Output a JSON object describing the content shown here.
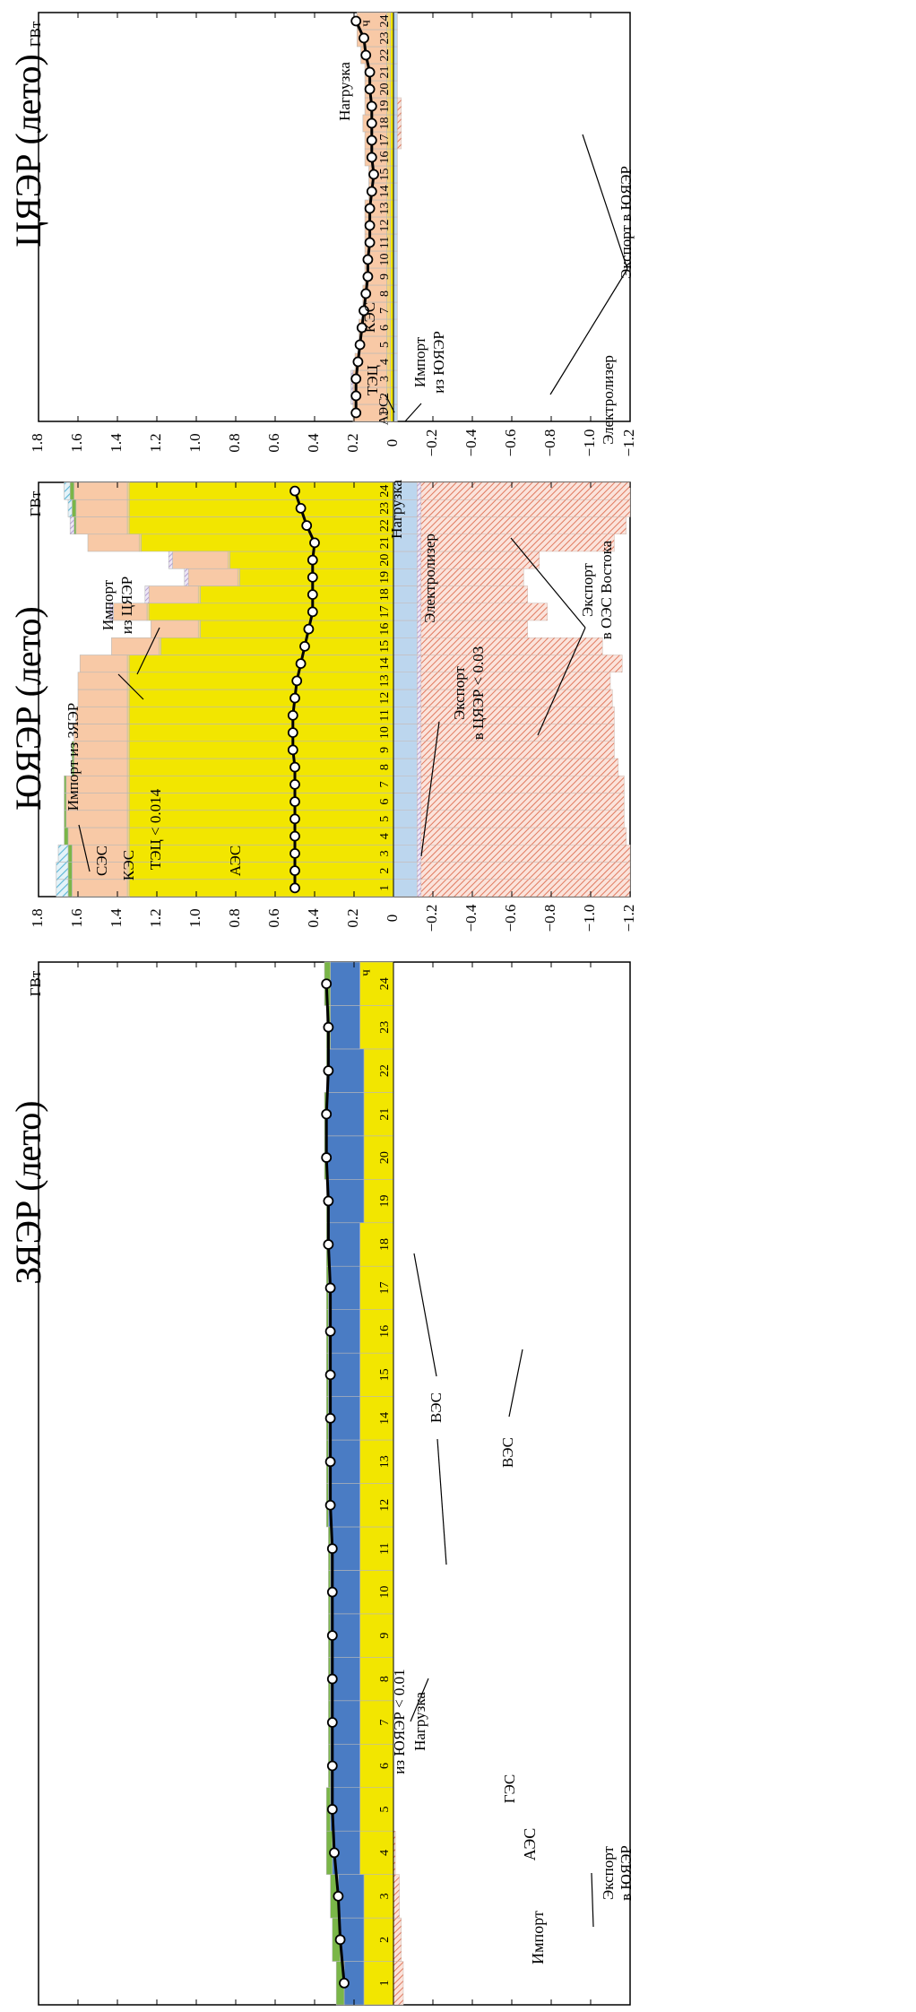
{
  "figure": {
    "unit_label": "ГВт",
    "hour_label": "ч",
    "legend_label": "Нагрузка"
  },
  "colors": {
    "aes": "#f2e600",
    "ges": "#4a7cc4",
    "ves": "#7ab648",
    "kes": "#f8c9a6",
    "tec": "#f3d27a",
    "electrolyzer": "#bcd6ee",
    "export_hatch": "#e07a5f",
    "import_hatch": "#a58cc8",
    "ses_hatch": "#5bb5d5",
    "load": "#000000"
  },
  "chart_data": [
    {
      "type": "area",
      "title": "ЗЯЭР (лето)",
      "ylabel": "ГВт",
      "xlabel": "ч",
      "ylim": [
        -1.2,
        1.8
      ],
      "y_ticks": [
        1.8,
        1.6,
        1.4,
        1.2,
        1.0,
        0.8,
        0.6,
        0.4,
        0.2,
        0,
        -0.2,
        -0.4,
        -0.6,
        -0.8,
        -1.0,
        -1.2
      ],
      "y_tick_labels": [
        "1.8",
        "1.6",
        "1.4",
        "1.2",
        "1.0",
        "0.8",
        "0.6",
        "0.4",
        "0.2",
        "0",
        "−0.2",
        "−0.4",
        "−0.6",
        "−0.8",
        "−1.0",
        "−1.2"
      ],
      "hours": [
        "1",
        "2",
        "3",
        "4",
        "5",
        "6",
        "7",
        "8",
        "9",
        "10",
        "11",
        "12",
        "13",
        "14",
        "15",
        "16",
        "17",
        "18",
        "19",
        "20",
        "21",
        "22",
        "23",
        "24"
      ],
      "layers": [
        {
          "key": "aes",
          "name": "АЭС",
          "color": "#f2e600",
          "values": [
            0.15,
            0.15,
            0.15,
            0.17,
            0.17,
            0.17,
            0.17,
            0.17,
            0.17,
            0.17,
            0.17,
            0.17,
            0.17,
            0.17,
            0.17,
            0.17,
            0.17,
            0.17,
            0.15,
            0.15,
            0.15,
            0.15,
            0.17,
            0.17
          ]
        },
        {
          "key": "ges",
          "name": "ГЭС",
          "color": "#4a7cc4",
          "values": [
            0.1,
            0.12,
            0.13,
            0.14,
            0.15,
            0.15,
            0.15,
            0.15,
            0.15,
            0.15,
            0.15,
            0.16,
            0.16,
            0.16,
            0.16,
            0.16,
            0.16,
            0.16,
            0.18,
            0.19,
            0.19,
            0.18,
            0.15,
            0.15
          ]
        },
        {
          "key": "ves",
          "name": "ВЭС",
          "color": "#7ab648",
          "values": [
            0.04,
            0.04,
            0.04,
            0.03,
            0.02,
            0.01,
            0.01,
            0.01,
            0.01,
            0.01,
            0.01,
            0.01,
            0.01,
            0.01,
            0.01,
            0.01,
            0.01,
            0.01,
            0.01,
            0.01,
            0.01,
            0.01,
            0.02,
            0.03
          ]
        }
      ],
      "negative_layers": [
        {
          "key": "export",
          "name": "Экспорт в ЮЯЭР",
          "color": "#e07a5f",
          "hatch": true,
          "values": [
            -0.05,
            -0.04,
            -0.03,
            -0.01,
            0,
            0,
            0,
            0,
            0,
            0,
            0,
            0,
            0,
            0,
            0,
            0,
            0,
            0,
            0,
            0,
            0,
            0,
            0,
            0
          ]
        }
      ],
      "load": [
        0.25,
        0.27,
        0.28,
        0.3,
        0.31,
        0.31,
        0.31,
        0.31,
        0.31,
        0.31,
        0.31,
        0.32,
        0.32,
        0.32,
        0.32,
        0.32,
        0.32,
        0.33,
        0.33,
        0.34,
        0.34,
        0.33,
        0.33,
        0.34
      ],
      "annotations": [
        {
          "text": "ВЭС"
        },
        {
          "text": "ГЭС"
        },
        {
          "text": "АЭС"
        },
        {
          "text": "Импорт"
        },
        {
          "text": "из ЮЯЭР < 0.01"
        },
        {
          "text": "Нагрузка"
        },
        {
          "text": "ВЭС"
        },
        {
          "text": "Экспорт"
        },
        {
          "text": "в ЮЯЭР"
        }
      ]
    },
    {
      "type": "area",
      "title": "ЮЯЭР (лето)",
      "ylabel": "ГВт",
      "xlabel": "ч",
      "ylim": [
        -1.2,
        1.8
      ],
      "y_ticks": [
        1.8,
        1.6,
        1.4,
        1.2,
        1.0,
        0.8,
        0.6,
        0.4,
        0.2,
        0,
        -0.2,
        -0.4,
        -0.6,
        -0.8,
        -1.0,
        -1.2
      ],
      "y_tick_labels": [
        "1.8",
        "1.6",
        "1.4",
        "1.2",
        "1.0",
        "0.8",
        "0.6",
        "0.4",
        "0.2",
        "0",
        "−0.2",
        "−0.4",
        "−0.6",
        "−0.8",
        "−1.0",
        "−1.2"
      ],
      "hours": [
        "1",
        "2",
        "3",
        "4",
        "5",
        "6",
        "7",
        "8",
        "9",
        "10",
        "11",
        "12",
        "13",
        "14",
        "15",
        "16",
        "17",
        "18",
        "19",
        "20",
        "21",
        "22",
        "23",
        "24"
      ],
      "layers": [
        {
          "key": "aes",
          "name": "АЭС",
          "color": "#f2e600",
          "values": [
            1.34,
            1.34,
            1.34,
            1.34,
            1.34,
            1.34,
            1.34,
            1.34,
            1.34,
            1.34,
            1.34,
            1.34,
            1.34,
            1.34,
            1.18,
            0.98,
            1.24,
            0.98,
            0.78,
            0.83,
            1.28,
            1.34,
            1.34,
            1.34
          ]
        },
        {
          "key": "tec",
          "name": "ТЭЦ < 0.014",
          "color": "#f3d27a",
          "values": [
            0.01,
            0.01,
            0.01,
            0.01,
            0.01,
            0.01,
            0.01,
            0.01,
            0.01,
            0.01,
            0.01,
            0.01,
            0.01,
            0.01,
            0.01,
            0.01,
            0.01,
            0.01,
            0.01,
            0.01,
            0.01,
            0.01,
            0.01,
            0.01
          ]
        },
        {
          "key": "kes",
          "name": "КЭС",
          "color": "#f8c9a6",
          "values": [
            0.28,
            0.28,
            0.28,
            0.3,
            0.31,
            0.31,
            0.31,
            0.27,
            0.27,
            0.27,
            0.26,
            0.25,
            0.25,
            0.24,
            0.24,
            0.24,
            0.17,
            0.25,
            0.25,
            0.28,
            0.26,
            0.26,
            0.26,
            0.27
          ]
        },
        {
          "key": "ves",
          "name": "СЭС",
          "color": "#7ab648",
          "values": [
            0.02,
            0.02,
            0.02,
            0.02,
            0.01,
            0.01,
            0.01,
            0.01,
            0.01,
            0.0,
            0.0,
            0.0,
            0.0,
            0.0,
            0.0,
            0.0,
            0.0,
            0.0,
            0.0,
            0.0,
            0.0,
            0.01,
            0.02,
            0.02
          ]
        },
        {
          "key": "ses",
          "name": "СЭС",
          "color": "#5bb5d5",
          "hatch": true,
          "values": [
            0.06,
            0.06,
            0.05,
            0.0,
            0,
            0,
            0,
            0,
            0,
            0,
            0,
            0,
            0,
            0,
            0,
            0,
            0,
            0,
            0,
            0,
            0,
            0,
            0.02,
            0.03
          ]
        },
        {
          "key": "import",
          "name": "Импорт из ЦЯЭР",
          "color": "#a58cc8",
          "hatch": true,
          "values": [
            0,
            0,
            0,
            0,
            0,
            0,
            0,
            0,
            0,
            0,
            0,
            0,
            0,
            0,
            0,
            0,
            0.02,
            0.02,
            0.02,
            0.02,
            0,
            0.02,
            0,
            0
          ]
        }
      ],
      "negative_layers": [
        {
          "key": "electrolyzer",
          "name": "Электролизер",
          "color": "#bcd6ee",
          "values": [
            -0.12,
            -0.12,
            -0.12,
            -0.12,
            -0.12,
            -0.12,
            -0.12,
            -0.12,
            -0.12,
            -0.12,
            -0.12,
            -0.12,
            -0.12,
            -0.12,
            -0.12,
            -0.12,
            -0.12,
            -0.12,
            -0.12,
            -0.12,
            -0.12,
            -0.12,
            -0.12,
            -0.12
          ]
        },
        {
          "key": "export_cyaer",
          "name": "Экспорт в ЦЯЭР < 0.03",
          "color": "#a58cc8",
          "hatch": true,
          "values": [
            -0.02,
            -0.02,
            -0.02,
            -0.02,
            -0.02,
            -0.02,
            -0.02,
            -0.02,
            -0.02,
            -0.02,
            -0.02,
            -0.02,
            -0.02,
            -0.02,
            -0.02,
            -0.02,
            -0.02,
            -0.02,
            -0.02,
            -0.02,
            -0.02,
            -0.02,
            -0.02,
            -0.02
          ]
        },
        {
          "key": "export_oes",
          "name": "Экспорт в ОЭС Востока",
          "color": "#e07a5f",
          "hatch": true,
          "values": [
            -1.06,
            -1.06,
            -1.06,
            -1.04,
            -1.03,
            -1.03,
            -1.03,
            -1.0,
            -0.98,
            -0.98,
            -0.98,
            -0.97,
            -0.96,
            -1.02,
            -0.92,
            -0.54,
            -0.64,
            -0.54,
            -0.52,
            -0.6,
            -0.98,
            -1.04,
            -1.06,
            -1.06
          ]
        }
      ],
      "load": [
        0.5,
        0.5,
        0.5,
        0.5,
        0.5,
        0.5,
        0.5,
        0.5,
        0.51,
        0.51,
        0.51,
        0.5,
        0.49,
        0.47,
        0.45,
        0.43,
        0.41,
        0.41,
        0.41,
        0.41,
        0.4,
        0.44,
        0.47,
        0.5
      ],
      "annotations": [
        {
          "text": "Импорт из ЗЯЭР"
        },
        {
          "text": "СЭС"
        },
        {
          "text": "КЭС"
        },
        {
          "text": "ТЭЦ < 0.014"
        },
        {
          "text": "АЭС"
        },
        {
          "text": "Импорт"
        },
        {
          "text": "из ЦЯЭР"
        },
        {
          "text": "Нагрузка"
        },
        {
          "text": "Электролизер"
        },
        {
          "text": "Экспорт"
        },
        {
          "text": "в ЦЯЭР < 0.03"
        },
        {
          "text": "Экспорт"
        },
        {
          "text": "в ОЭС Востока"
        }
      ]
    },
    {
      "type": "area",
      "title": "ЦЯЭР (лето)",
      "ylabel": "ГВт",
      "xlabel": "ч",
      "ylim": [
        -1.2,
        1.8
      ],
      "y_ticks": [
        1.8,
        1.6,
        1.4,
        1.2,
        1.0,
        0.8,
        0.6,
        0.4,
        0.2,
        0,
        -0.2,
        -0.4,
        -0.6,
        -0.8,
        -1.0,
        -1.2
      ],
      "y_tick_labels": [
        "1.8",
        "1.6",
        "1.4",
        "1.2",
        "1.0",
        "0.8",
        "0.6",
        "0.4",
        "0.2",
        "0",
        "−0.2",
        "−0.4",
        "−0.6",
        "−0.8",
        "−1.0",
        "−1.2"
      ],
      "hours": [
        "1",
        "2",
        "3",
        "4",
        "5",
        "6",
        "7",
        "8",
        "9",
        "10",
        "11",
        "12",
        "13",
        "14",
        "15",
        "16",
        "17",
        "18",
        "19",
        "20",
        "21",
        "22",
        "23",
        "24"
      ],
      "layers": [
        {
          "key": "aes",
          "name": "АЭС",
          "color": "#f2e600",
          "values": [
            0.015,
            0.015,
            0.015,
            0.015,
            0.015,
            0.015,
            0.015,
            0.015,
            0.015,
            0.015,
            0.015,
            0.015,
            0.015,
            0.015,
            0.015,
            0.015,
            0.015,
            0.015,
            0.015,
            0.015,
            0.015,
            0.015,
            0.015,
            0.015
          ]
        },
        {
          "key": "tec",
          "name": "ТЭЦ",
          "color": "#f3d27a",
          "values": [
            0.02,
            0.02,
            0.02,
            0.02,
            0.02,
            0.02,
            0.02,
            0.02,
            0.02,
            0.02,
            0.02,
            0.02,
            0.02,
            0.02,
            0.02,
            0.02,
            0.02,
            0.02,
            0.02,
            0.02,
            0.02,
            0.02,
            0.02,
            0.02
          ]
        },
        {
          "key": "kes",
          "name": "КЭС",
          "color": "#f8c9a6",
          "values": [
            0.17,
            0.17,
            0.17,
            0.16,
            0.14,
            0.14,
            0.12,
            0.12,
            0.11,
            0.11,
            0.11,
            0.11,
            0.11,
            0.09,
            0.09,
            0.11,
            0.11,
            0.12,
            0.11,
            0.11,
            0.11,
            0.13,
            0.15,
            0.15
          ]
        },
        {
          "key": "import",
          "name": "Импорт из ЮЯЭР",
          "color": "#a58cc8",
          "hatch": true,
          "values": [
            0.0,
            0.01,
            0.01,
            0,
            0,
            0,
            0,
            0,
            0,
            0,
            0,
            0,
            0,
            0,
            0,
            0,
            0,
            0,
            0,
            0,
            0,
            0,
            0,
            0
          ]
        }
      ],
      "negative_layers": [
        {
          "key": "electrolyzer",
          "name": "Электролизер",
          "color": "#bcd6ee",
          "values": [
            -0.02,
            -0.02,
            -0.02,
            -0.02,
            -0.02,
            -0.02,
            -0.02,
            -0.02,
            -0.02,
            -0.02,
            -0.02,
            -0.02,
            -0.02,
            -0.02,
            -0.02,
            -0.02,
            -0.02,
            -0.02,
            -0.02,
            -0.02,
            -0.02,
            -0.02,
            -0.02,
            -0.02
          ]
        },
        {
          "key": "export",
          "name": "Экспорт в ЮЯЭР",
          "color": "#e07a5f",
          "hatch": true,
          "values": [
            0,
            0,
            0,
            0,
            0,
            0,
            0,
            0,
            0,
            0,
            0,
            0,
            0,
            0,
            0,
            0,
            -0.02,
            -0.02,
            -0.02,
            0,
            0,
            0,
            0,
            0
          ]
        }
      ],
      "load": [
        0.19,
        0.19,
        0.19,
        0.18,
        0.17,
        0.16,
        0.15,
        0.14,
        0.13,
        0.13,
        0.12,
        0.12,
        0.12,
        0.11,
        0.1,
        0.11,
        0.11,
        0.11,
        0.11,
        0.12,
        0.12,
        0.14,
        0.15,
        0.19
      ],
      "annotations": [
        {
          "text": "Импорт"
        },
        {
          "text": "из ЮЯЭР"
        },
        {
          "text": "КЭС"
        },
        {
          "text": "ТЭЦ"
        },
        {
          "text": "АЭС"
        },
        {
          "text": "Электролизер"
        },
        {
          "text": "Нагрузка"
        },
        {
          "text": "Экспорт в ЮЯЭР"
        }
      ]
    }
  ]
}
